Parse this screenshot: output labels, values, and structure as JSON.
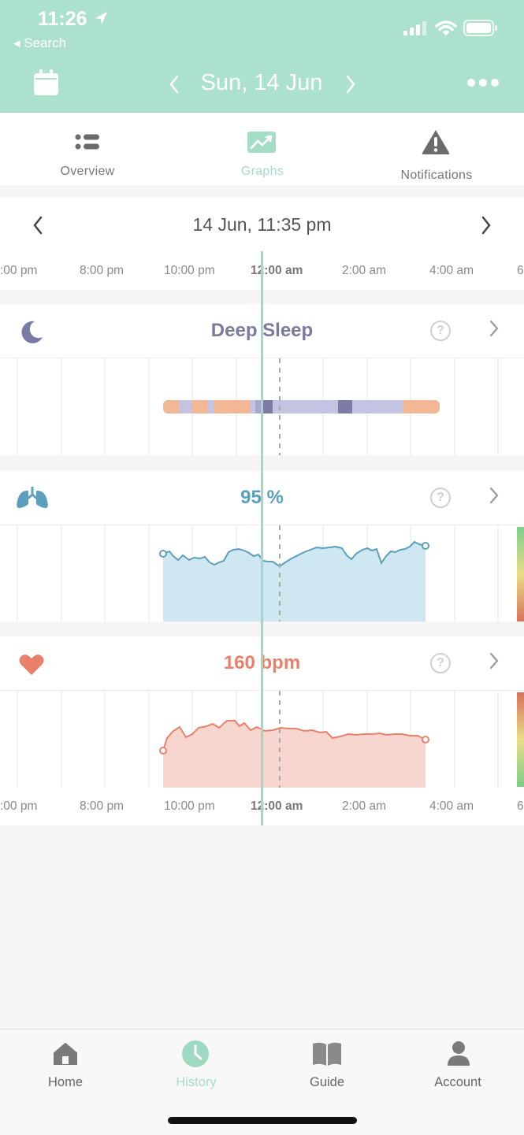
{
  "status_bar": {
    "time": "11:26",
    "back_label": "◂ Search"
  },
  "header": {
    "date": "Sun, 14 Jun"
  },
  "tabs": [
    {
      "label": "Overview",
      "active": false,
      "icon": "list-icon"
    },
    {
      "label": "Graphs",
      "active": true,
      "icon": "chart-icon"
    },
    {
      "label": "Notifications",
      "active": false,
      "icon": "warning-icon"
    }
  ],
  "timeline": {
    "current_datetime": "14 Jun, 11:35 pm",
    "hours": [
      ":00 pm",
      "8:00 pm",
      "10:00 pm",
      "12:00 am",
      "2:00 am",
      "4:00 am",
      "6"
    ]
  },
  "sleep_card": {
    "title": "Deep Sleep",
    "help": "?"
  },
  "oxygen_card": {
    "title": "95 %",
    "help": "?"
  },
  "heart_card": {
    "title": "160 bpm",
    "help": "?"
  },
  "bottom_axis": {
    "hours": [
      ":00 pm",
      "8:00 pm",
      "10:00 pm",
      "12:00 am",
      "2:00 am",
      "4:00 am",
      "6"
    ]
  },
  "nav": [
    {
      "label": "Home",
      "icon": "home-icon",
      "active": false
    },
    {
      "label": "History",
      "icon": "clock-icon",
      "active": true
    },
    {
      "label": "Guide",
      "icon": "book-icon",
      "active": false
    },
    {
      "label": "Account",
      "icon": "person-icon",
      "active": false
    }
  ],
  "colors": {
    "header": "#ace2cd",
    "accent": "#9fd9c2",
    "sleep_title": "#7a7a9e",
    "oxygen": "#5b9fbd",
    "heart": "#e8806c",
    "light_sleep": "#c3c3e2",
    "awake": "#f2b896",
    "deep_sleep": "#7d7ca6"
  }
}
